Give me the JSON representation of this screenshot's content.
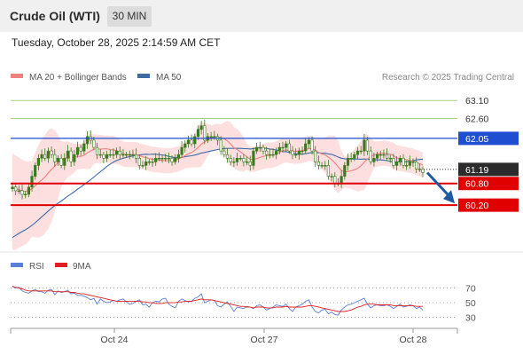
{
  "header": {
    "title": "Crude Oil (WTI)",
    "timeframe": "30 MIN",
    "timestamp": "Tuesday, October 28, 2025 2:14:59 AM CET"
  },
  "colors": {
    "ma20": "#f08080",
    "bands": "#fcd4d4",
    "ma50": "#3f6aa8",
    "candle": "#3b7a1f",
    "resistance_green": "#a8d080",
    "resistance_blue": "#1f4fd0",
    "support_red": "#e00000",
    "current_dark": "#2b2b2b",
    "forecast_arrow": "#1f5aa0",
    "rsi": "#5a7fd6",
    "rsi_ma": "#e02020"
  },
  "chart_data": [
    {
      "type": "candlestick",
      "title": "",
      "credit": "Research © 2025 Trading Central",
      "legend": [
        {
          "label": "MA 20 + Bollinger Bands",
          "color": "#f08080"
        },
        {
          "label": "MA 50",
          "color": "#3f6aa8"
        }
      ],
      "x_ticks": [
        "Oct 24",
        "Oct 27",
        "Oct 28"
      ],
      "price_levels": [
        {
          "label": "63.10",
          "value": 63.1,
          "style": "resistance_green"
        },
        {
          "label": "62.60",
          "value": 62.6,
          "style": "resistance_green"
        },
        {
          "label": "62.05",
          "value": 62.05,
          "style": "resistance_blue"
        },
        {
          "label": "61.19",
          "value": 61.19,
          "style": "current_dark"
        },
        {
          "label": "60.80",
          "value": 60.8,
          "style": "support_red"
        },
        {
          "label": "60.20",
          "value": 60.2,
          "style": "support_red"
        }
      ],
      "series_close": [
        60.7,
        60.6,
        60.6,
        60.5,
        60.5,
        60.7,
        61.0,
        61.3,
        61.5,
        61.6,
        61.5,
        61.7,
        61.6,
        61.4,
        61.5,
        61.3,
        61.5,
        61.7,
        61.4,
        61.6,
        61.8,
        61.7,
        61.9,
        62.1,
        62.0,
        61.8,
        61.6,
        61.6,
        61.5,
        61.6,
        61.6,
        61.6,
        61.7,
        61.6,
        61.6,
        61.6,
        61.6,
        61.6,
        61.5,
        61.3,
        61.3,
        61.4,
        61.4,
        61.4,
        61.5,
        61.5,
        61.5,
        61.5,
        61.5,
        61.4,
        61.5,
        61.6,
        61.8,
        61.9,
        62.0,
        61.9,
        62.1,
        62.3,
        62.4,
        62.0,
        62.1,
        62.1,
        62.1,
        62.0,
        61.7,
        61.6,
        61.5,
        61.4,
        61.4,
        61.5,
        61.5,
        61.4,
        61.4,
        61.3,
        61.7,
        61.8,
        61.8,
        61.7,
        61.6,
        61.6,
        61.6,
        61.7,
        61.8,
        61.8,
        61.9,
        61.7,
        61.6,
        61.6,
        61.7,
        61.7,
        61.9,
        62.0,
        61.7,
        61.4,
        61.3,
        61.3,
        61.3,
        61.0,
        61.0,
        60.8,
        60.8,
        61.0,
        61.3,
        61.5,
        61.5,
        61.6,
        61.7,
        61.7,
        62.0,
        61.7,
        61.4,
        61.5,
        61.6,
        61.6,
        61.6,
        61.5,
        61.5,
        61.3,
        61.4,
        61.5,
        61.3,
        61.3,
        61.4,
        61.4,
        61.2,
        61.2,
        61.1
      ],
      "ma20_y_range": [
        60.6,
        62.1
      ],
      "ma50_start": 59.3,
      "y_range": [
        58.9,
        63.4
      ]
    },
    {
      "type": "line",
      "title": "",
      "legend": [
        {
          "label": "RSI",
          "color": "#5a7fd6"
        },
        {
          "label": "9MA",
          "color": "#e02020"
        }
      ],
      "y_ticks": [
        "70",
        "50",
        "30"
      ],
      "y_range": [
        15,
        90
      ],
      "rsi": [
        73,
        70,
        71,
        66,
        64,
        63,
        66,
        68,
        65,
        65,
        63,
        67,
        68,
        61,
        66,
        64,
        65,
        67,
        62,
        63,
        60,
        60,
        59,
        57,
        54,
        56,
        48,
        55,
        52,
        50,
        51,
        53,
        52,
        54,
        55,
        51,
        48,
        49,
        52,
        54,
        47,
        48,
        44,
        50,
        52,
        51,
        55,
        56,
        48,
        45,
        43,
        52,
        55,
        53,
        51,
        52,
        56,
        58,
        62,
        50,
        52,
        54,
        53,
        46,
        44,
        48,
        51,
        45,
        38,
        44,
        43,
        42,
        45,
        44,
        42,
        46,
        47,
        44,
        40,
        42,
        44,
        47,
        46,
        45,
        48,
        42,
        38,
        44,
        46,
        48,
        52,
        54,
        44,
        38,
        36,
        40,
        41,
        35,
        37,
        34,
        33,
        40,
        44,
        47,
        48,
        50,
        52,
        54,
        56,
        48,
        43,
        46,
        47,
        46,
        46,
        47,
        45,
        42,
        45,
        48,
        44,
        45,
        47,
        46,
        42,
        44,
        40
      ],
      "ma9": [
        72,
        71,
        70,
        69,
        67,
        66,
        66,
        66,
        66,
        66,
        66,
        66,
        66,
        65,
        65,
        65,
        65,
        65,
        64,
        64,
        63,
        62,
        62,
        61,
        60,
        59,
        58,
        57,
        56,
        55,
        54,
        53,
        52,
        52,
        52,
        52,
        52,
        52,
        52,
        52,
        51,
        51,
        50,
        50,
        49,
        49,
        49,
        50,
        50,
        50,
        50,
        51,
        51,
        52,
        52,
        52,
        53,
        54,
        55,
        54,
        54,
        54,
        53,
        52,
        51,
        50,
        49,
        48,
        47,
        46,
        45,
        45,
        44,
        44,
        43,
        44,
        44,
        44,
        43,
        43,
        43,
        44,
        44,
        44,
        45,
        44,
        44,
        44,
        44,
        44,
        45,
        46,
        46,
        45,
        44,
        43,
        42,
        41,
        40,
        39,
        38,
        38,
        38,
        39,
        40,
        42,
        44,
        45,
        47,
        48,
        48,
        48,
        47,
        47,
        47,
        47,
        47,
        46,
        46,
        46,
        46,
        46,
        46,
        46,
        45,
        45,
        45
      ]
    }
  ]
}
